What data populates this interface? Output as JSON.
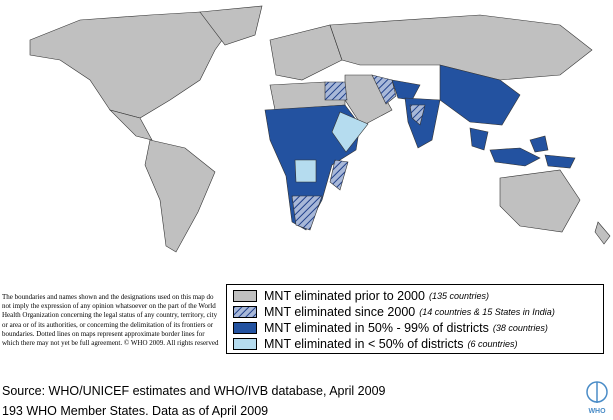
{
  "legend": {
    "items": [
      {
        "label": "MNT eliminated prior to 2000",
        "note": "(135 countries)"
      },
      {
        "label": "MNT eliminated since 2000",
        "note": "(14 countries & 15 States in India)"
      },
      {
        "label": "MNT eliminated in 50% - 99% of districts",
        "note": "(38 countries)"
      },
      {
        "label": "MNT eliminated in < 50% of districts",
        "note": "(6 countries)"
      }
    ]
  },
  "disclaimer": "The boundaries and names shown and the designations used on this map do not imply the expression of any opinion whatsoever on the part of the World Health Organization concerning the legal status of any country, territory, city or area or of its authorities, or concerning the delimitation of its frontiers or boundaries.  Dotted lines on maps represent approximate border lines for which there may not yet be full agreement. © WHO 2009. All rights reserved",
  "source": "Source: WHO/UNICEF estimates and WHO/IVB database, April 2009",
  "footer": "193 WHO Member States. Data as of April 2009",
  "logo": "WHO"
}
